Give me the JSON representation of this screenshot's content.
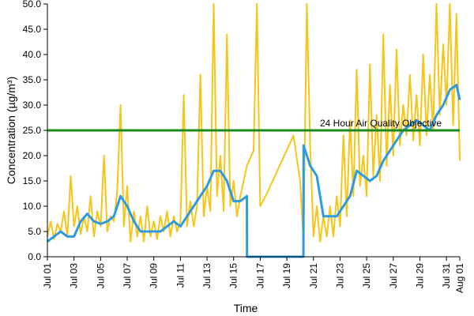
{
  "chart_data": {
    "type": "line",
    "xlabel": "Time",
    "ylabel": "Concentration (µg/m³)",
    "ylim": [
      0,
      50
    ],
    "yticks": [
      "0.0",
      "5.0",
      "10.0",
      "15.0",
      "20.0",
      "25.0",
      "30.0",
      "35.0",
      "40.0",
      "45.0",
      "50.0"
    ],
    "x_range": [
      "2014-07-01",
      "2014-08-01"
    ],
    "xticks": [
      {
        "label": "Jul 01",
        "date": "2014-07-01"
      },
      {
        "label": "Jul 03",
        "date": "2014-07-03"
      },
      {
        "label": "Jul 05",
        "date": "2014-07-05"
      },
      {
        "label": "Jul 07",
        "date": "2014-07-07"
      },
      {
        "label": "Jul 09",
        "date": "2014-07-09"
      },
      {
        "label": "Jul 11",
        "date": "2014-07-11"
      },
      {
        "label": "Jul 13",
        "date": "2014-07-13"
      },
      {
        "label": "Jul 15",
        "date": "2014-07-15"
      },
      {
        "label": "Jul 17",
        "date": "2014-07-17"
      },
      {
        "label": "Jul 19",
        "date": "2014-07-19"
      },
      {
        "label": "Jul 21",
        "date": "2014-07-21"
      },
      {
        "label": "Jul 23",
        "date": "2014-07-23"
      },
      {
        "label": "Jul 25",
        "date": "2014-07-25"
      },
      {
        "label": "Jul 27",
        "date": "2014-07-27"
      },
      {
        "label": "Jul 29",
        "date": "2014-07-29"
      },
      {
        "label": "Jul 31",
        "date": "2014-07-31"
      },
      {
        "label": "Aug 01",
        "date": "2014-08-01"
      }
    ],
    "grid": false,
    "legend": "none",
    "series": [
      {
        "color": "#F5C518",
        "points": [
          [
            "2014-07-01 00:00",
            4.0
          ],
          [
            "2014-07-01 06:00",
            7.0
          ],
          [
            "2014-07-01 12:00",
            3.5
          ],
          [
            "2014-07-01 18:00",
            6.5
          ],
          [
            "2014-07-02 00:00",
            5.0
          ],
          [
            "2014-07-02 06:00",
            9.0
          ],
          [
            "2014-07-02 12:00",
            4.0
          ],
          [
            "2014-07-02 18:00",
            16.0
          ],
          [
            "2014-07-03 00:00",
            6.0
          ],
          [
            "2014-07-03 06:00",
            10.0
          ],
          [
            "2014-07-03 12:00",
            4.5
          ],
          [
            "2014-07-03 18:00",
            8.0
          ],
          [
            "2014-07-04 00:00",
            5.0
          ],
          [
            "2014-07-04 06:00",
            12.0
          ],
          [
            "2014-07-04 12:00",
            4.0
          ],
          [
            "2014-07-04 18:00",
            9.0
          ],
          [
            "2014-07-05 00:00",
            6.0
          ],
          [
            "2014-07-05 06:00",
            20.0
          ],
          [
            "2014-07-05 12:00",
            5.0
          ],
          [
            "2014-07-05 18:00",
            8.0
          ],
          [
            "2014-07-06 00:00",
            7.0
          ],
          [
            "2014-07-06 06:00",
            13.0
          ],
          [
            "2014-07-06 12:00",
            30.0
          ],
          [
            "2014-07-06 18:00",
            6.0
          ],
          [
            "2014-07-07 00:00",
            14.0
          ],
          [
            "2014-07-07 06:00",
            3.0
          ],
          [
            "2014-07-07 12:00",
            9.0
          ],
          [
            "2014-07-07 18:00",
            4.0
          ],
          [
            "2014-07-08 00:00",
            8.0
          ],
          [
            "2014-07-08 06:00",
            3.0
          ],
          [
            "2014-07-08 12:00",
            10.0
          ],
          [
            "2014-07-08 18:00",
            4.0
          ],
          [
            "2014-07-09 00:00",
            7.0
          ],
          [
            "2014-07-09 06:00",
            3.5
          ],
          [
            "2014-07-09 12:00",
            8.0
          ],
          [
            "2014-07-09 18:00",
            5.0
          ],
          [
            "2014-07-10 00:00",
            9.0
          ],
          [
            "2014-07-10 06:00",
            4.0
          ],
          [
            "2014-07-10 12:00",
            8.0
          ],
          [
            "2014-07-10 18:00",
            5.0
          ],
          [
            "2014-07-11 00:00",
            7.0
          ],
          [
            "2014-07-11 06:00",
            32.0
          ],
          [
            "2014-07-11 12:00",
            6.0
          ],
          [
            "2014-07-11 18:00",
            11.0
          ],
          [
            "2014-07-12 00:00",
            6.0
          ],
          [
            "2014-07-12 06:00",
            10.0
          ],
          [
            "2014-07-12 12:00",
            36.0
          ],
          [
            "2014-07-12 18:00",
            8.0
          ],
          [
            "2014-07-13 00:00",
            14.0
          ],
          [
            "2014-07-13 06:00",
            9.0
          ],
          [
            "2014-07-13 12:00",
            50.0
          ],
          [
            "2014-07-13 18:00",
            12.0
          ],
          [
            "2014-07-14 00:00",
            20.0
          ],
          [
            "2014-07-14 06:00",
            9.0
          ],
          [
            "2014-07-14 12:00",
            44.0
          ],
          [
            "2014-07-14 18:00",
            10.0
          ],
          [
            "2014-07-15 00:00",
            15.0
          ],
          [
            "2014-07-15 06:00",
            8.0
          ],
          [
            "2014-07-15 12:00",
            12.0
          ],
          [
            "2014-07-16 00:00",
            18.0
          ],
          [
            "2014-07-16 12:00",
            21.0
          ],
          [
            "2014-07-16 18:00",
            50.0
          ],
          [
            "2014-07-17 00:00",
            10.0
          ],
          [
            "2014-07-17 12:00",
            12.5
          ],
          [
            "2014-07-19 12:00",
            24.0
          ],
          [
            "2014-07-20 00:00",
            15.0
          ],
          [
            "2014-07-20 06:00",
            3.0
          ],
          [
            "2014-07-20 12:00",
            50.0
          ],
          [
            "2014-07-20 18:00",
            22.0
          ],
          [
            "2014-07-21 00:00",
            4.0
          ],
          [
            "2014-07-21 06:00",
            10.0
          ],
          [
            "2014-07-21 12:00",
            3.0
          ],
          [
            "2014-07-21 18:00",
            8.0
          ],
          [
            "2014-07-22 00:00",
            4.0
          ],
          [
            "2014-07-22 06:00",
            10.0
          ],
          [
            "2014-07-22 12:00",
            4.0
          ],
          [
            "2014-07-22 18:00",
            12.0
          ],
          [
            "2014-07-23 00:00",
            6.0
          ],
          [
            "2014-07-23 06:00",
            24.0
          ],
          [
            "2014-07-23 12:00",
            8.0
          ],
          [
            "2014-07-23 18:00",
            27.0
          ],
          [
            "2014-07-24 00:00",
            12.0
          ],
          [
            "2014-07-24 06:00",
            37.0
          ],
          [
            "2014-07-24 12:00",
            14.0
          ],
          [
            "2014-07-24 18:00",
            20.0
          ],
          [
            "2014-07-25 00:00",
            12.0
          ],
          [
            "2014-07-25 06:00",
            38.0
          ],
          [
            "2014-07-25 12:00",
            16.0
          ],
          [
            "2014-07-25 18:00",
            28.0
          ],
          [
            "2014-07-26 00:00",
            15.0
          ],
          [
            "2014-07-26 06:00",
            44.0
          ],
          [
            "2014-07-26 12:00",
            18.0
          ],
          [
            "2014-07-26 18:00",
            34.0
          ],
          [
            "2014-07-27 00:00",
            20.0
          ],
          [
            "2014-07-27 06:00",
            41.0
          ],
          [
            "2014-07-27 12:00",
            22.0
          ],
          [
            "2014-07-27 18:00",
            30.0
          ],
          [
            "2014-07-28 00:00",
            24.0
          ],
          [
            "2014-07-28 06:00",
            36.0
          ],
          [
            "2014-07-28 12:00",
            23.0
          ],
          [
            "2014-07-28 18:00",
            32.0
          ],
          [
            "2014-07-29 00:00",
            22.0
          ],
          [
            "2014-07-29 06:00",
            40.0
          ],
          [
            "2014-07-29 12:00",
            24.0
          ],
          [
            "2014-07-29 18:00",
            36.0
          ],
          [
            "2014-07-30 00:00",
            25.0
          ],
          [
            "2014-07-30 06:00",
            50.0
          ],
          [
            "2014-07-30 12:00",
            28.0
          ],
          [
            "2014-07-30 18:00",
            42.0
          ],
          [
            "2014-07-31 00:00",
            30.0
          ],
          [
            "2014-07-31 06:00",
            50.0
          ],
          [
            "2014-07-31 12:00",
            26.0
          ],
          [
            "2014-07-31 18:00",
            48.0
          ],
          [
            "2014-08-01 00:00",
            19.0
          ]
        ]
      },
      {
        "color": "#2E9BE0",
        "points": [
          [
            "2014-07-01 00:00",
            3.0
          ],
          [
            "2014-07-01 12:00",
            4.0
          ],
          [
            "2014-07-02 00:00",
            5.0
          ],
          [
            "2014-07-02 12:00",
            4.0
          ],
          [
            "2014-07-03 00:00",
            4.0
          ],
          [
            "2014-07-03 12:00",
            7.0
          ],
          [
            "2014-07-04 00:00",
            8.5
          ],
          [
            "2014-07-04 12:00",
            7.0
          ],
          [
            "2014-07-05 00:00",
            6.5
          ],
          [
            "2014-07-05 12:00",
            7.0
          ],
          [
            "2014-07-06 00:00",
            8.0
          ],
          [
            "2014-07-06 12:00",
            12.0
          ],
          [
            "2014-07-07 00:00",
            10.0
          ],
          [
            "2014-07-07 12:00",
            7.0
          ],
          [
            "2014-07-08 00:00",
            5.0
          ],
          [
            "2014-07-08 12:00",
            5.0
          ],
          [
            "2014-07-09 00:00",
            5.0
          ],
          [
            "2014-07-09 12:00",
            5.0
          ],
          [
            "2014-07-10 00:00",
            6.0
          ],
          [
            "2014-07-10 12:00",
            7.0
          ],
          [
            "2014-07-11 00:00",
            6.0
          ],
          [
            "2014-07-11 12:00",
            8.0
          ],
          [
            "2014-07-12 00:00",
            10.0
          ],
          [
            "2014-07-12 12:00",
            12.0
          ],
          [
            "2014-07-13 00:00",
            14.0
          ],
          [
            "2014-07-13 12:00",
            17.0
          ],
          [
            "2014-07-14 00:00",
            17.0
          ],
          [
            "2014-07-14 12:00",
            15.0
          ],
          [
            "2014-07-15 00:00",
            11.0
          ],
          [
            "2014-07-15 12:00",
            11.0
          ],
          [
            "2014-07-16 00:00",
            12.0
          ],
          [
            "2014-07-16 00:10",
            0.0
          ],
          [
            "2014-07-20 06:00",
            0.0
          ],
          [
            "2014-07-20 06:10",
            22.0
          ],
          [
            "2014-07-20 18:00",
            18.0
          ],
          [
            "2014-07-21 06:00",
            16.0
          ],
          [
            "2014-07-21 18:00",
            8.0
          ],
          [
            "2014-07-22 06:00",
            8.0
          ],
          [
            "2014-07-22 18:00",
            8.0
          ],
          [
            "2014-07-23 06:00",
            10.0
          ],
          [
            "2014-07-23 18:00",
            12.0
          ],
          [
            "2014-07-24 06:00",
            17.0
          ],
          [
            "2014-07-24 18:00",
            16.0
          ],
          [
            "2014-07-25 06:00",
            15.0
          ],
          [
            "2014-07-25 18:00",
            16.0
          ],
          [
            "2014-07-26 06:00",
            19.0
          ],
          [
            "2014-07-26 18:00",
            21.0
          ],
          [
            "2014-07-27 06:00",
            23.0
          ],
          [
            "2014-07-27 18:00",
            25.0
          ],
          [
            "2014-07-28 06:00",
            26.0
          ],
          [
            "2014-07-28 18:00",
            27.0
          ],
          [
            "2014-07-29 06:00",
            26.0
          ],
          [
            "2014-07-29 18:00",
            25.0
          ],
          [
            "2014-07-30 06:00",
            28.0
          ],
          [
            "2014-07-30 18:00",
            30.0
          ],
          [
            "2014-07-31 06:00",
            33.0
          ],
          [
            "2014-07-31 18:00",
            34.0
          ],
          [
            "2014-08-01 00:00",
            31.0
          ]
        ]
      }
    ],
    "reference_line": {
      "label": "24 Hour Air Quality Objective",
      "value": 25.0,
      "color": "#1B8A1B"
    }
  }
}
